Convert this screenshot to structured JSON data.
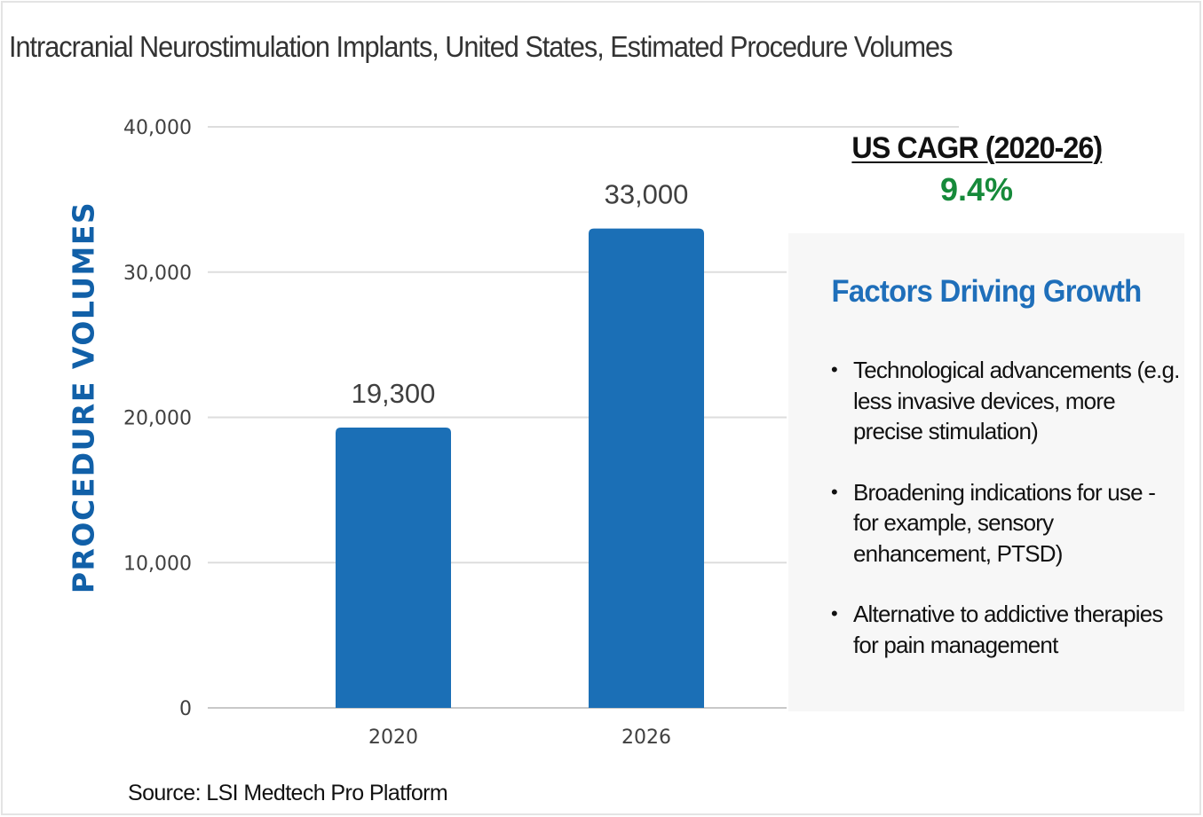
{
  "title": "Intracranial Neurostimulation Implants, United States, Estimated Procedure Volumes",
  "chart_data": {
    "type": "bar",
    "title": "Intracranial Neurostimulation Implants, United States, Estimated Procedure Volumes",
    "xlabel": "",
    "ylabel": "PROCEDURE VOLUMES",
    "categories": [
      "2020",
      "2026"
    ],
    "values": [
      19300,
      33000
    ],
    "value_labels": [
      "19,300",
      "33,000"
    ],
    "ylim": [
      0,
      40000
    ],
    "yticks": [
      0,
      10000,
      20000,
      30000,
      40000
    ],
    "ytick_labels": [
      "0",
      "10,000",
      "20,000",
      "30,000",
      "40,000"
    ],
    "grid": true,
    "bar_color": "#1b6fb6",
    "legend": "none"
  },
  "cagr": {
    "label": "US CAGR (2020-26)",
    "value": "9.4%",
    "value_color": "#168a3a"
  },
  "factors_panel": {
    "title": "Factors Driving Growth",
    "title_color": "#1f6fba",
    "items": [
      "Technological advancements (e.g. less invasive devices, more precise stimulation)",
      "Broadening indications for use - for example, sensory enhancement, PTSD)",
      "Alternative to addictive therapies for pain management"
    ],
    "bullet": "•"
  },
  "source": "Source: LSI Medtech Pro Platform"
}
